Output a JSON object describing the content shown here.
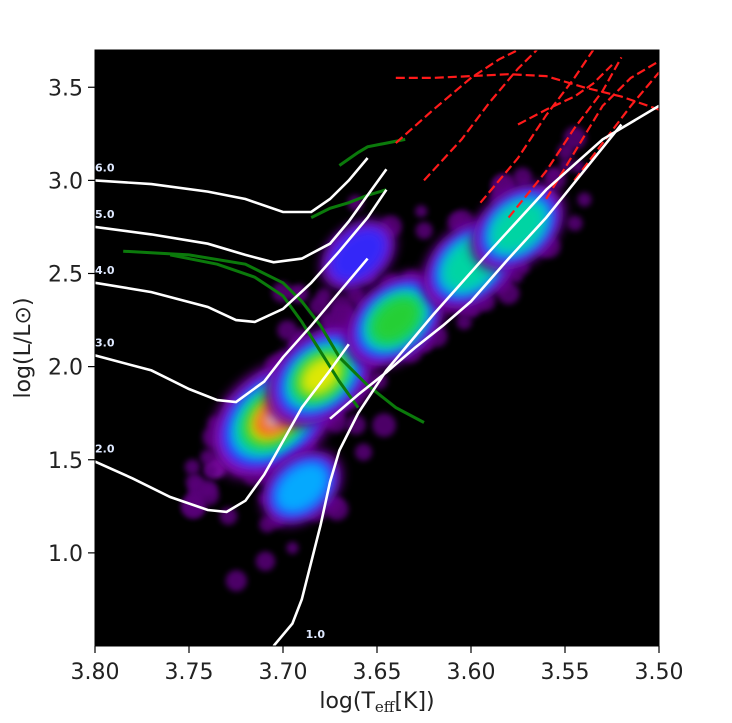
{
  "chart_data": {
    "type": "scatter",
    "title": "",
    "xlabel": "log(T_eff[K])",
    "xlabel_parts": {
      "main": "log(T",
      "sub": "eff",
      "tail": "[K])"
    },
    "ylabel": "log(L/L⊙)",
    "xlim": [
      3.8,
      3.5
    ],
    "ylim": [
      0.5,
      3.7
    ],
    "x_reversed": true,
    "x_ticks": [
      "3.80",
      "3.75",
      "3.70",
      "3.65",
      "3.60",
      "3.55",
      "3.50"
    ],
    "y_ticks": [
      "1.0",
      "1.5",
      "2.0",
      "2.5",
      "3.0",
      "3.5"
    ],
    "background_color": "#000000",
    "density_colormap": [
      "#5a007a",
      "#9a14c8",
      "#2a2cff",
      "#00b8ff",
      "#00d99a",
      "#2ccf2c",
      "#f2ea00",
      "#ff2a00",
      "#d8d0d8"
    ],
    "density_centers": [
      {
        "x": 3.705,
        "y": 1.72,
        "w": 1.0
      },
      {
        "x": 3.68,
        "y": 1.95,
        "w": 0.7
      },
      {
        "x": 3.64,
        "y": 2.25,
        "w": 0.6
      },
      {
        "x": 3.6,
        "y": 2.55,
        "w": 0.55
      },
      {
        "x": 3.575,
        "y": 2.75,
        "w": 0.5
      },
      {
        "x": 3.69,
        "y": 1.35,
        "w": 0.35
      },
      {
        "x": 3.66,
        "y": 2.6,
        "w": 0.3
      }
    ],
    "series": [
      {
        "label": "6.0",
        "color": "#ffffff",
        "x": [
          3.8,
          3.77,
          3.74,
          3.72,
          3.7,
          3.685,
          3.675,
          3.665,
          3.655
        ],
        "y": [
          3.0,
          2.98,
          2.94,
          2.9,
          2.83,
          2.83,
          2.9,
          3.0,
          3.12
        ]
      },
      {
        "label": "5.0",
        "color": "#ffffff",
        "x": [
          3.8,
          3.77,
          3.74,
          3.72,
          3.705,
          3.69,
          3.675,
          3.665,
          3.655,
          3.645
        ],
        "y": [
          2.75,
          2.71,
          2.66,
          2.6,
          2.56,
          2.58,
          2.66,
          2.78,
          2.92,
          3.06
        ]
      },
      {
        "label": "4.0",
        "color": "#ffffff",
        "x": [
          3.8,
          3.77,
          3.74,
          3.725,
          3.715,
          3.7,
          3.685,
          3.67,
          3.655,
          3.645
        ],
        "y": [
          2.45,
          2.4,
          2.32,
          2.25,
          2.24,
          2.31,
          2.45,
          2.62,
          2.8,
          2.95
        ]
      },
      {
        "label": "3.0",
        "color": "#ffffff",
        "x": [
          3.8,
          3.77,
          3.75,
          3.735,
          3.725,
          3.71,
          3.7,
          3.685,
          3.67,
          3.655
        ],
        "y": [
          2.06,
          1.98,
          1.88,
          1.82,
          1.81,
          1.92,
          2.05,
          2.22,
          2.4,
          2.58
        ]
      },
      {
        "label": "2.0",
        "color": "#ffffff",
        "x": [
          3.8,
          3.78,
          3.76,
          3.74,
          3.73,
          3.72,
          3.71,
          3.7,
          3.69,
          3.675,
          3.665
        ],
        "y": [
          1.49,
          1.4,
          1.3,
          1.23,
          1.22,
          1.28,
          1.42,
          1.6,
          1.78,
          1.98,
          2.12
        ]
      },
      {
        "label": "1.0",
        "color": "#ffffff",
        "x": [
          3.705,
          3.695,
          3.69,
          3.685,
          3.68,
          3.675,
          3.67,
          3.66,
          3.645,
          3.62,
          3.59,
          3.56,
          3.53,
          3.5
        ],
        "y": [
          0.5,
          0.62,
          0.75,
          0.95,
          1.15,
          1.38,
          1.55,
          1.75,
          1.98,
          2.28,
          2.62,
          2.95,
          3.22,
          3.4
        ]
      },
      {
        "label": "",
        "color": "#ffffff",
        "x": [
          3.675,
          3.66,
          3.645,
          3.63,
          3.615,
          3.6,
          3.58,
          3.56,
          3.54,
          3.52
        ],
        "y": [
          1.72,
          1.85,
          1.97,
          2.1,
          2.22,
          2.35,
          2.58,
          2.8,
          3.05,
          3.3
        ]
      }
    ],
    "green_tracks": [
      {
        "x": [
          3.785,
          3.75,
          3.72,
          3.7,
          3.69,
          3.68,
          3.67,
          3.655,
          3.64,
          3.625
        ],
        "y": [
          2.62,
          2.6,
          2.55,
          2.45,
          2.35,
          2.22,
          2.05,
          1.9,
          1.78,
          1.7
        ]
      },
      {
        "x": [
          3.76,
          3.735,
          3.715,
          3.7,
          3.69,
          3.68,
          3.67,
          3.66
        ],
        "y": [
          2.6,
          2.55,
          2.48,
          2.38,
          2.24,
          2.08,
          1.92,
          1.78
        ]
      },
      {
        "x": [
          3.67,
          3.66,
          3.655,
          3.645,
          3.635
        ],
        "y": [
          3.08,
          3.15,
          3.18,
          3.2,
          3.22
        ]
      },
      {
        "x": [
          3.685,
          3.675,
          3.665,
          3.655,
          3.645
        ],
        "y": [
          2.8,
          2.85,
          2.88,
          2.92,
          2.95
        ]
      }
    ],
    "red_tracks": [
      {
        "x": [
          3.64,
          3.62,
          3.6,
          3.58,
          3.56,
          3.54,
          3.52,
          3.5
        ],
        "y": [
          3.55,
          3.55,
          3.56,
          3.57,
          3.56,
          3.5,
          3.45,
          3.38
        ]
      },
      {
        "x": [
          3.64,
          3.62,
          3.6,
          3.585,
          3.575
        ],
        "y": [
          3.2,
          3.38,
          3.55,
          3.65,
          3.7
        ]
      },
      {
        "x": [
          3.625,
          3.605,
          3.59,
          3.575,
          3.565
        ],
        "y": [
          3.0,
          3.22,
          3.42,
          3.6,
          3.7
        ]
      },
      {
        "x": [
          3.595,
          3.575,
          3.56,
          3.545,
          3.535
        ],
        "y": [
          2.88,
          3.12,
          3.35,
          3.55,
          3.7
        ]
      },
      {
        "x": [
          3.58,
          3.56,
          3.545,
          3.53,
          3.52
        ],
        "y": [
          2.8,
          3.05,
          3.28,
          3.48,
          3.66
        ]
      },
      {
        "x": [
          3.56,
          3.545,
          3.53,
          3.515,
          3.5
        ],
        "y": [
          2.9,
          3.15,
          3.4,
          3.55,
          3.64
        ]
      },
      {
        "x": [
          3.545,
          3.53,
          3.515,
          3.505,
          3.5
        ],
        "y": [
          3.0,
          3.2,
          3.4,
          3.52,
          3.58
        ]
      },
      {
        "x": [
          3.575,
          3.56,
          3.545,
          3.535,
          3.525
        ],
        "y": [
          3.3,
          3.38,
          3.45,
          3.52,
          3.62
        ]
      }
    ]
  }
}
